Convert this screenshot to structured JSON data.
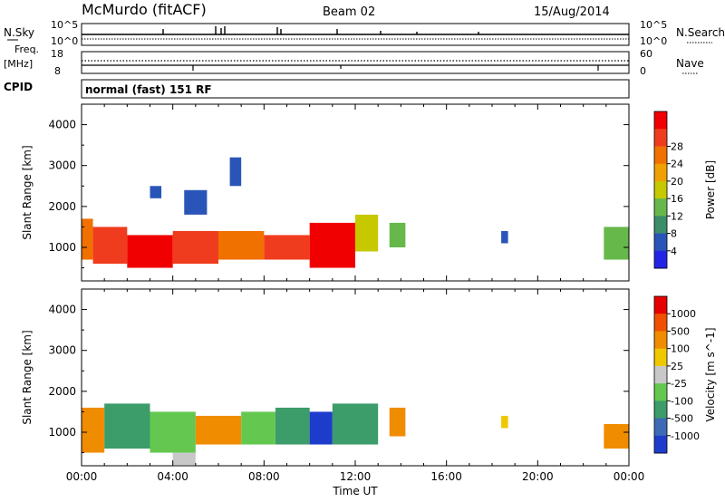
{
  "header": {
    "station": "McMurdo (fitACF)",
    "beam": "Beam 02",
    "date": "15/Aug/2014"
  },
  "top_panels": {
    "nsky_label": "N.Sky",
    "nsearch_label": "N.Search",
    "count_top_left": "10^5",
    "count_bottom_left": "10^0",
    "count_top_right": "10^5",
    "count_bottom_right": "10^0",
    "freq_label": "Freq.",
    "freq_unit": "[MHz]",
    "freq_top": "18",
    "freq_bottom": "8",
    "nave_top": "60",
    "nave_bottom": "0",
    "nave_label": "Nave",
    "cpid_label": "CPID",
    "cpid_value": "normal (fast) 151 RF"
  },
  "chart_data": [
    {
      "type": "heatmap",
      "name": "power-panel",
      "xlabel": "",
      "ylabel": "Slant Range [km]",
      "xlim": [
        0,
        24
      ],
      "ylim": [
        180,
        4500
      ],
      "y_ticks": [
        1000,
        2000,
        3000,
        4000
      ],
      "colorbar_label": "Power [dB]",
      "colorbar_ticks": [
        "4",
        "8",
        "12",
        "16",
        "20",
        "24",
        "28"
      ],
      "colorbar_colors": [
        "#2323e6",
        "#2a55b8",
        "#3d8c6a",
        "#66b84a",
        "#c6c800",
        "#f0a000",
        "#f07000",
        "#f03c1e",
        "#f00000"
      ],
      "regions": [
        {
          "t0": 0.0,
          "t1": 0.5,
          "r0": 700,
          "r1": 1700,
          "level": 6
        },
        {
          "t0": 0.5,
          "t1": 2.0,
          "r0": 600,
          "r1": 1500,
          "level": 7
        },
        {
          "t0": 2.0,
          "t1": 4.0,
          "r0": 500,
          "r1": 1300,
          "level": 8
        },
        {
          "t0": 4.0,
          "t1": 6.0,
          "r0": 600,
          "r1": 1400,
          "level": 7
        },
        {
          "t0": 6.0,
          "t1": 8.0,
          "r0": 700,
          "r1": 1400,
          "level": 6
        },
        {
          "t0": 8.0,
          "t1": 10.0,
          "r0": 700,
          "r1": 1300,
          "level": 7
        },
        {
          "t0": 10.0,
          "t1": 12.0,
          "r0": 500,
          "r1": 1600,
          "level": 8
        },
        {
          "t0": 12.0,
          "t1": 13.0,
          "r0": 900,
          "r1": 1800,
          "level": 4
        },
        {
          "t0": 13.5,
          "t1": 14.2,
          "r0": 1000,
          "r1": 1600,
          "level": 3
        },
        {
          "t0": 18.4,
          "t1": 18.7,
          "r0": 1100,
          "r1": 1400,
          "level": 1
        },
        {
          "t0": 22.9,
          "t1": 24.0,
          "r0": 700,
          "r1": 1500,
          "level": 3
        },
        {
          "t0": 3.0,
          "t1": 3.5,
          "r0": 2200,
          "r1": 2500,
          "level": 1
        },
        {
          "t0": 4.5,
          "t1": 5.5,
          "r0": 1800,
          "r1": 2400,
          "level": 1
        },
        {
          "t0": 6.5,
          "t1": 7.0,
          "r0": 2500,
          "r1": 3200,
          "level": 1
        }
      ]
    },
    {
      "type": "heatmap",
      "name": "velocity-panel",
      "xlabel": "Time UT",
      "ylabel": "Slant Range [km]",
      "xlim": [
        0,
        24
      ],
      "ylim": [
        180,
        4500
      ],
      "x_ticks": [
        "00:00",
        "04:00",
        "08:00",
        "12:00",
        "16:00",
        "20:00",
        "00:00"
      ],
      "y_ticks": [
        1000,
        2000,
        3000,
        4000
      ],
      "colorbar_label": "Velocity [m s^-1]",
      "colorbar_ticks": [
        "1000",
        "500",
        "100",
        "25",
        "-25",
        "-100",
        "-500",
        "-1000"
      ],
      "colorbar_colors": [
        "#1e3ccc",
        "#3c6ab4",
        "#3c9c6a",
        "#64c850",
        "#c8c8c8",
        "#f0c800",
        "#f08c00",
        "#f05000",
        "#e60000"
      ],
      "regions": [
        {
          "t0": 0.0,
          "t1": 1.0,
          "r0": 500,
          "r1": 1600,
          "level": 6
        },
        {
          "t0": 1.0,
          "t1": 3.0,
          "r0": 600,
          "r1": 1700,
          "level": 2
        },
        {
          "t0": 3.0,
          "t1": 5.0,
          "r0": 500,
          "r1": 1500,
          "level": 3
        },
        {
          "t0": 5.0,
          "t1": 7.0,
          "r0": 700,
          "r1": 1400,
          "level": 6
        },
        {
          "t0": 7.0,
          "t1": 8.5,
          "r0": 700,
          "r1": 1500,
          "level": 3
        },
        {
          "t0": 8.5,
          "t1": 10.0,
          "r0": 700,
          "r1": 1600,
          "level": 2
        },
        {
          "t0": 10.0,
          "t1": 11.0,
          "r0": 700,
          "r1": 1500,
          "level": 0
        },
        {
          "t0": 11.0,
          "t1": 13.0,
          "r0": 700,
          "r1": 1700,
          "level": 2
        },
        {
          "t0": 13.5,
          "t1": 14.2,
          "r0": 900,
          "r1": 1600,
          "level": 6
        },
        {
          "t0": 18.4,
          "t1": 18.7,
          "r0": 1100,
          "r1": 1400,
          "level": 5
        },
        {
          "t0": 22.9,
          "t1": 24.0,
          "r0": 600,
          "r1": 1200,
          "level": 6
        },
        {
          "t0": 4.0,
          "t1": 5.0,
          "r0": 200,
          "r1": 500,
          "level": 4
        }
      ]
    }
  ]
}
